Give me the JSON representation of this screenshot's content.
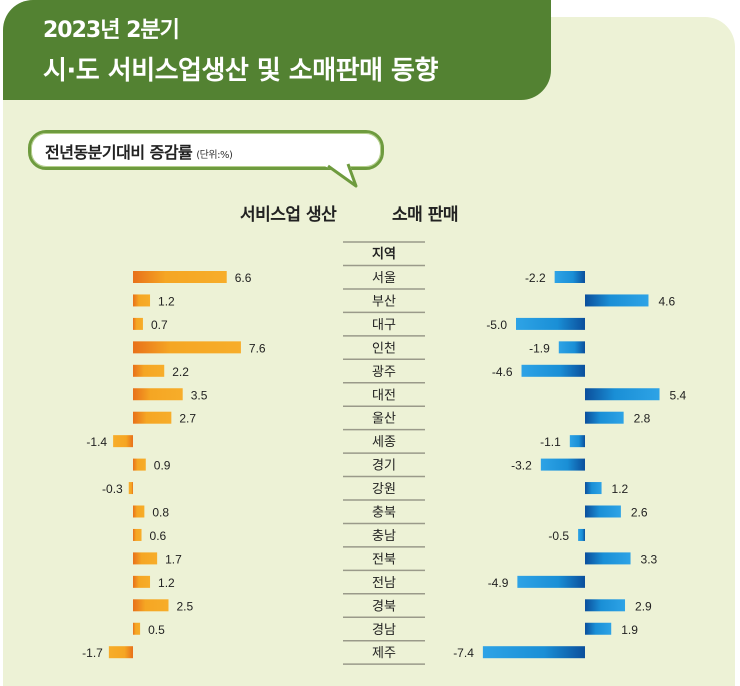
{
  "header": {
    "line1": "2023년 2분기",
    "line2": "시·도 서비스업생산 및 소매판매 동향"
  },
  "bubble": {
    "title": "전년동분기대비 증감률",
    "unit": "(단위:%)"
  },
  "colors": {
    "header_bg": "#538232",
    "card_bg": "#edf2d6",
    "service_bar": "#f5a623",
    "service_bar_dark": "#e8711a",
    "retail_bar": "#1a8fd6",
    "retail_bar_dark": "#0b4f9c"
  },
  "chart_data": {
    "type": "bar",
    "orientation": "horizontal",
    "title": "전년동분기대비 증감률",
    "unit": "%",
    "category_header": "지역",
    "categories": [
      "서울",
      "부산",
      "대구",
      "인천",
      "광주",
      "대전",
      "울산",
      "세종",
      "경기",
      "강원",
      "충북",
      "충남",
      "전북",
      "전남",
      "경북",
      "경남",
      "제주"
    ],
    "series": [
      {
        "name": "서비스업 생산",
        "values": [
          6.6,
          1.2,
          0.7,
          7.6,
          2.2,
          3.5,
          2.7,
          -1.4,
          0.9,
          -0.3,
          0.8,
          0.6,
          1.7,
          1.2,
          2.5,
          0.5,
          -1.7
        ]
      },
      {
        "name": "소매 판매",
        "values": [
          -2.2,
          4.6,
          -5.0,
          -1.9,
          -4.6,
          5.4,
          2.8,
          -1.1,
          -3.2,
          1.2,
          2.6,
          -0.5,
          3.3,
          -4.9,
          2.9,
          1.9,
          -7.4
        ]
      }
    ],
    "grid": false,
    "legend": "column-titles-top"
  }
}
